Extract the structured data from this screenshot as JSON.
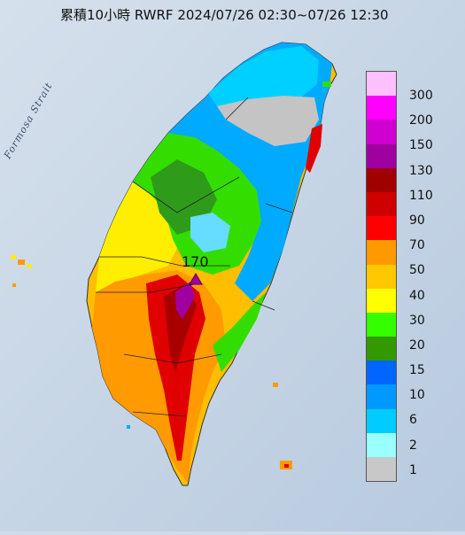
{
  "header": {
    "title": "累積10小時 RWRF 2024/07/26 02:30~07/26 12:30"
  },
  "map": {
    "sea_label": "Formosa Strait",
    "max_marker_value": "170",
    "max_marker_shape": "triangle"
  },
  "legend": {
    "items": [
      {
        "label": "300",
        "color": "#ffc0ff"
      },
      {
        "label": "200",
        "color": "#ff00ff"
      },
      {
        "label": "150",
        "color": "#d000d0"
      },
      {
        "label": "130",
        "color": "#a000a0"
      },
      {
        "label": "110",
        "color": "#a00000"
      },
      {
        "label": "90",
        "color": "#d00000"
      },
      {
        "label": "70",
        "color": "#ff0000"
      },
      {
        "label": "50",
        "color": "#ff9900"
      },
      {
        "label": "40",
        "color": "#ffc800"
      },
      {
        "label": "30",
        "color": "#ffff00"
      },
      {
        "label": "20",
        "color": "#33ff00"
      },
      {
        "label": "15",
        "color": "#339900"
      },
      {
        "label": "10",
        "color": "#0066ff"
      },
      {
        "label": "6",
        "color": "#0099ff"
      },
      {
        "label": "2",
        "color": "#00ccff"
      },
      {
        "label": "1",
        "color": "#99ffff"
      },
      {
        "label": "",
        "color": "#c8c8c8"
      }
    ]
  }
}
